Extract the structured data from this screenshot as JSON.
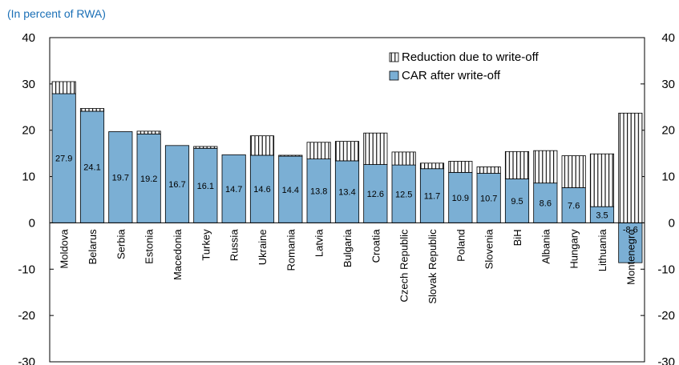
{
  "header": {
    "title_fragment": "",
    "subtitle": "(In percent of RWA)"
  },
  "chart_data": {
    "type": "bar",
    "stacked": true,
    "categories": [
      "Moldova",
      "Belarus",
      "Serbia",
      "Estonia",
      "Macedonia",
      "Turkey",
      "Russia",
      "Ukraine",
      "Romania",
      "Latvia",
      "Bulgaria",
      "Croatia",
      "Czech Republic",
      "Slovak Republic",
      "Poland",
      "Slovenia",
      "BiH",
      "Albania",
      "Hungary",
      "Lithuania",
      "Montenegro"
    ],
    "series": [
      {
        "name": "CAR after write-off",
        "color": "#7bafd4",
        "values": [
          27.9,
          24.1,
          19.7,
          19.2,
          16.7,
          16.1,
          14.7,
          14.6,
          14.4,
          13.8,
          13.4,
          12.6,
          12.5,
          11.7,
          10.9,
          10.7,
          9.5,
          8.6,
          7.6,
          3.5,
          -8.6
        ],
        "labels": [
          "27.9",
          "24.1",
          "19.7",
          "19.2",
          "16.7",
          "16.1",
          "14.7",
          "14.6",
          "14.4",
          "13.8",
          "13.4",
          "12.6",
          "12.5",
          "11.7",
          "10.9",
          "10.7",
          "9.5",
          "8.6",
          "7.6",
          "3.5",
          "-8.6"
        ]
      },
      {
        "name": "Reduction due to write-off",
        "pattern": "vertical-stripes",
        "values": [
          2.6,
          0.6,
          0,
          0.6,
          0,
          0.4,
          0,
          4.2,
          0.2,
          3.6,
          4.2,
          6.8,
          2.8,
          1.2,
          2.4,
          1.4,
          5.9,
          7.0,
          6.9,
          11.4,
          23.7
        ]
      }
    ],
    "ylim": [
      -30,
      40
    ],
    "yticks": [
      -30,
      -20,
      -10,
      0,
      10,
      20,
      30,
      40
    ],
    "ytick_labels": [
      "-30",
      "-20",
      "-10",
      "0",
      "10",
      "20",
      "30",
      "40"
    ],
    "right_axis_mirror": true,
    "legend": {
      "placement": "top-right",
      "entries": [
        "Reduction due to write-off",
        "CAR after write-off"
      ]
    },
    "grid": false,
    "xlabel": "",
    "ylabel": ""
  }
}
